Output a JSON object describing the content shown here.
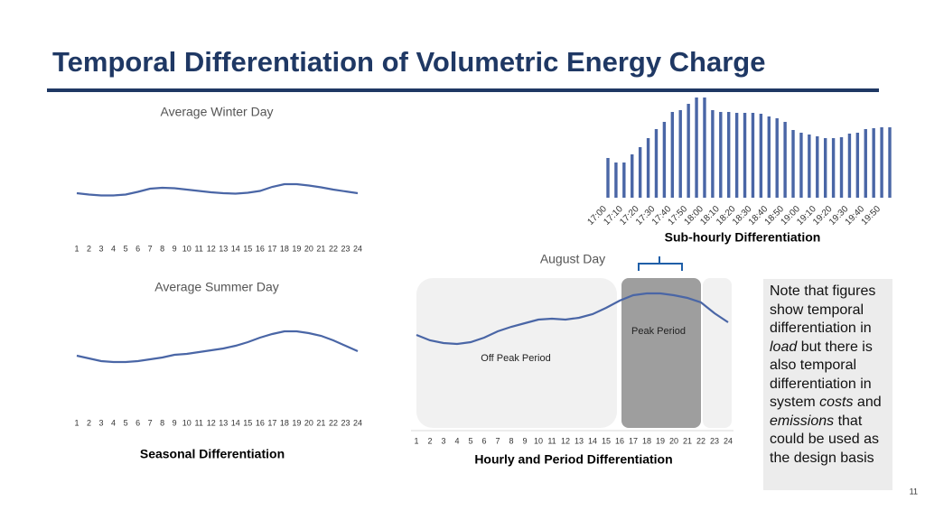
{
  "slide": {
    "title": "Temporal Differentiation of Volumetric Energy Charge",
    "captions": {
      "seasonal": "Seasonal Differentiation",
      "hourly": "Hourly and Period Differentiation",
      "subhourly": "Sub-hourly Differentiation"
    },
    "note": [
      "Note that figures show temporal differentiation in ",
      "load",
      " but there is also temporal differentiation in system ",
      "costs",
      " and ",
      "emissions",
      " that could be used as the design basis"
    ],
    "page_number": "11"
  },
  "chart_data": [
    {
      "type": "line",
      "title": "Average Winter Day",
      "color": "#4a66a6",
      "categories": [
        1,
        2,
        3,
        4,
        5,
        6,
        7,
        8,
        9,
        10,
        11,
        12,
        13,
        14,
        15,
        16,
        17,
        18,
        19,
        20,
        21,
        22,
        23,
        24
      ],
      "values": [
        46,
        44.5,
        43.5,
        43.5,
        44.5,
        47.5,
        51,
        52,
        51.5,
        50,
        48.5,
        47,
        46,
        45.5,
        46.5,
        48.5,
        53,
        56,
        56,
        54.5,
        52.5,
        50,
        48,
        46
      ],
      "ylim": [
        0,
        100
      ]
    },
    {
      "type": "line",
      "title": "Average Summer Day",
      "color": "#4a66a6",
      "categories": [
        1,
        2,
        3,
        4,
        5,
        6,
        7,
        8,
        9,
        10,
        11,
        12,
        13,
        14,
        15,
        16,
        17,
        18,
        19,
        20,
        21,
        22,
        23,
        24
      ],
      "values": [
        66,
        63,
        60,
        59,
        59,
        60,
        62,
        64,
        67,
        68,
        70,
        72,
        74,
        77,
        81,
        86,
        90,
        93,
        93,
        91,
        88,
        83,
        77,
        71
      ],
      "ylim": [
        0,
        100
      ]
    },
    {
      "type": "line",
      "title": "August Day",
      "color": "#4a66a6",
      "categories": [
        1,
        2,
        3,
        4,
        5,
        6,
        7,
        8,
        9,
        10,
        11,
        12,
        13,
        14,
        15,
        16,
        17,
        18,
        19,
        20,
        21,
        22,
        23,
        24
      ],
      "values": [
        104,
        98,
        95,
        94,
        96,
        101,
        108,
        113,
        117,
        121,
        122,
        121,
        123,
        127,
        134,
        142,
        148,
        150,
        150,
        148,
        145,
        140,
        128,
        118
      ],
      "annotations": [
        "Off Peak Period",
        "Peak Period"
      ],
      "ylim": [
        0,
        170
      ]
    },
    {
      "type": "bar",
      "color": "#4a66a6",
      "categories": [
        "17:00",
        null,
        "17:10",
        null,
        "17:20",
        null,
        "17:30",
        null,
        "17:40",
        null,
        "17:50",
        null,
        "18:00",
        null,
        "18:10",
        null,
        "18:20",
        null,
        "18:30",
        null,
        "18:40",
        null,
        "18:50",
        null,
        "19:00",
        null,
        "19:10",
        null,
        "19:20",
        null,
        "19:30",
        null,
        "19:40",
        null,
        "19:50",
        null
      ],
      "values": [
        44,
        39,
        39,
        48,
        56,
        66,
        76,
        84,
        95,
        97,
        104,
        111,
        111,
        97,
        95,
        95,
        94,
        94,
        94,
        93,
        90,
        88,
        84,
        75,
        72,
        70,
        68,
        66,
        66,
        67,
        71,
        72,
        76,
        77,
        78,
        78
      ],
      "ylim": [
        0,
        120
      ]
    }
  ]
}
